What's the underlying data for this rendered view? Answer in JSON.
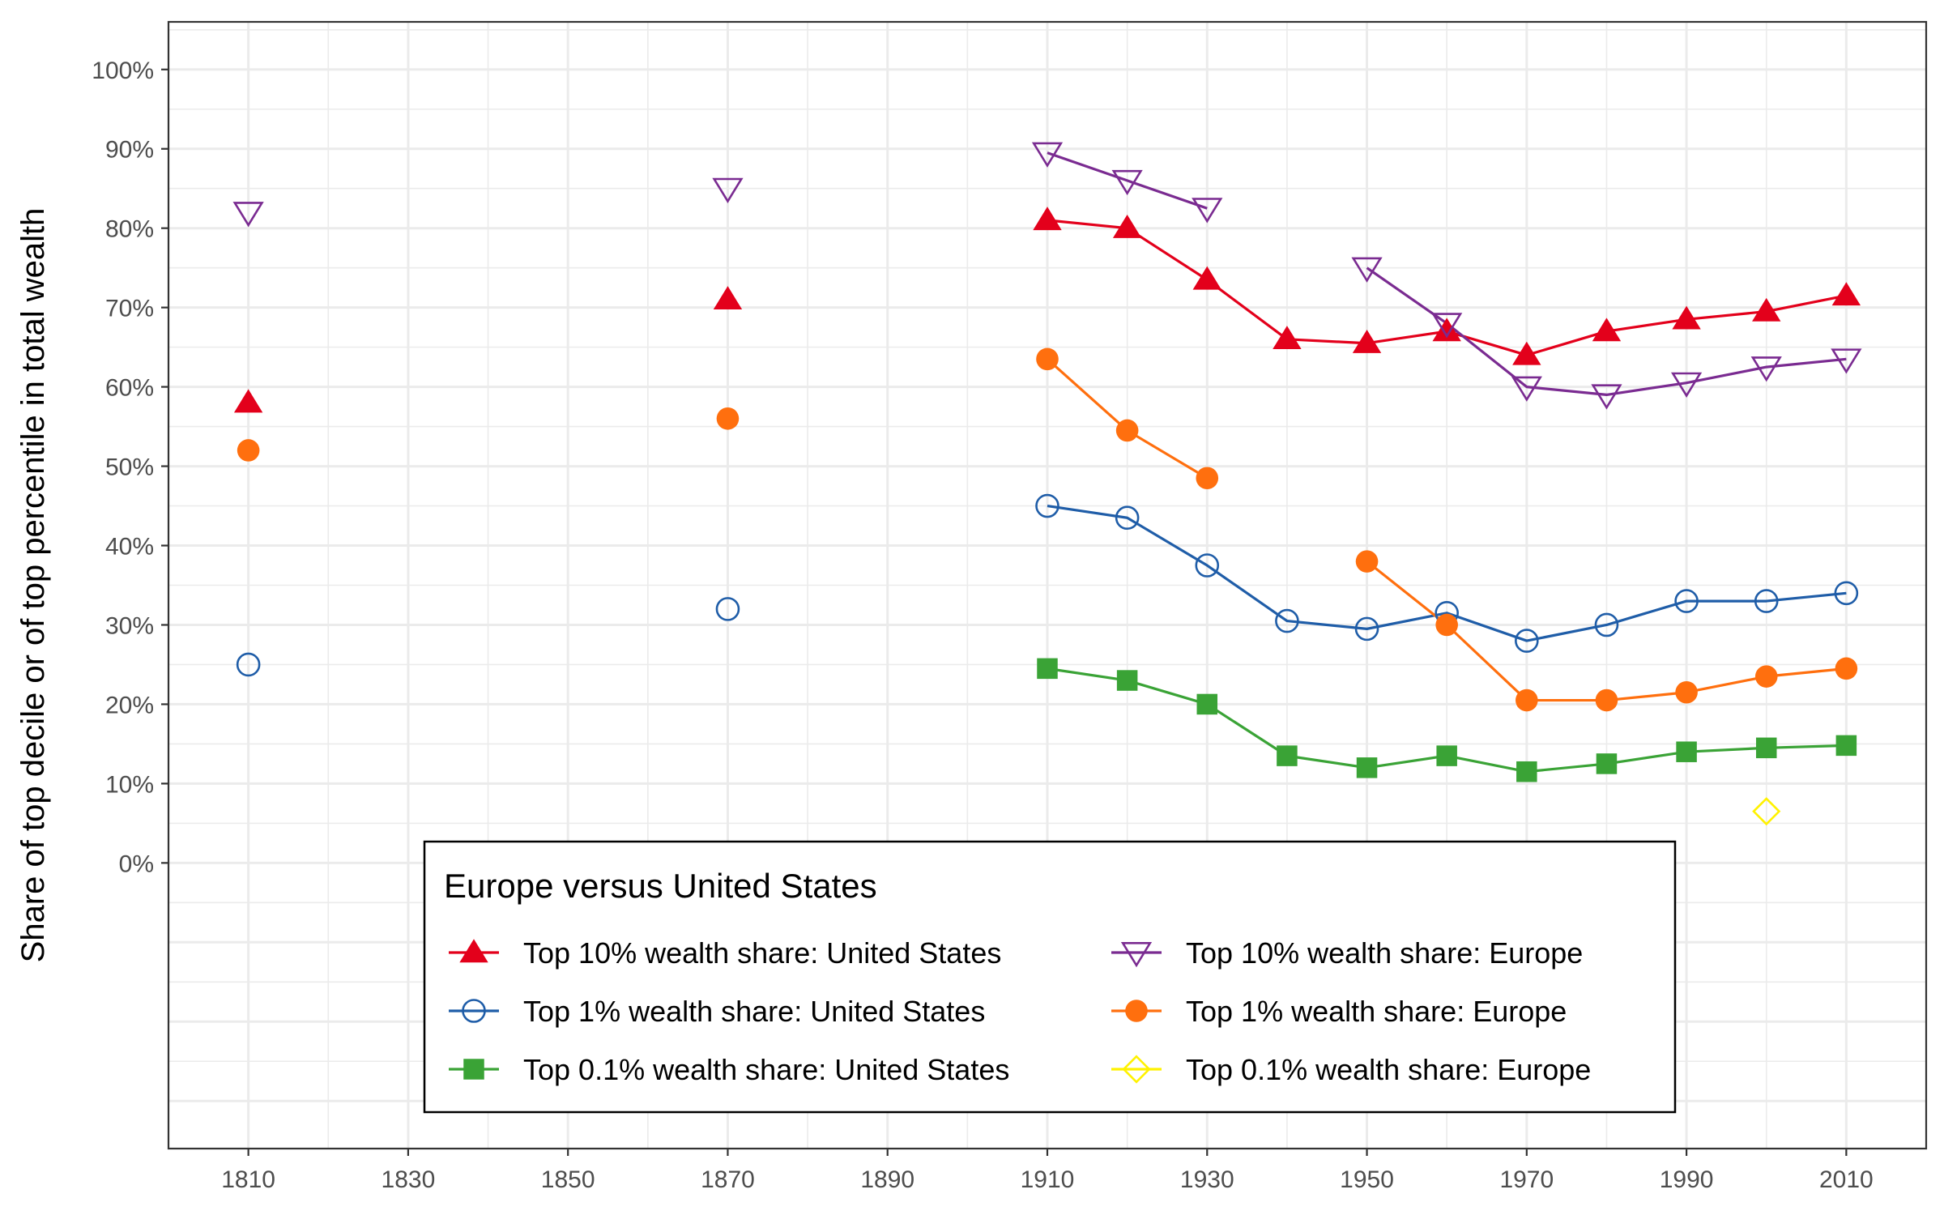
{
  "chart_data": {
    "type": "line",
    "title": "",
    "xlabel": "",
    "ylabel": "Share of top decile or of top percentile in total wealth",
    "xlim": [
      1800,
      2020
    ],
    "ylim": [
      -0.36,
      1.06
    ],
    "x_ticks": [
      1810,
      1830,
      1850,
      1870,
      1890,
      1910,
      1930,
      1950,
      1970,
      1990,
      2010
    ],
    "x_tick_labels": [
      "1810",
      "1830",
      "1850",
      "1870",
      "1890",
      "1910",
      "1930",
      "1950",
      "1970",
      "1990",
      "2010"
    ],
    "y_ticks": [
      0,
      0.1,
      0.2,
      0.3,
      0.4,
      0.5,
      0.6,
      0.7,
      0.8,
      0.9,
      1.0
    ],
    "y_tick_labels": [
      "0%",
      "10%",
      "20%",
      "30%",
      "40%",
      "50%",
      "60%",
      "70%",
      "80%",
      "90%",
      "100%"
    ],
    "grid": true,
    "legend": {
      "title": "Europe versus United States",
      "position": "bottom-center"
    },
    "series": [
      {
        "name": "Top 10% wealth share: United States",
        "color": "#E3001B",
        "marker": "triangle-filled",
        "points": [
          [
            1810,
            0.58
          ],
          [
            1870,
            0.71
          ],
          [
            1910,
            0.81
          ],
          [
            1920,
            0.8
          ],
          [
            1930,
            0.735
          ],
          [
            1940,
            0.66
          ],
          [
            1950,
            0.655
          ],
          [
            1960,
            0.67
          ],
          [
            1970,
            0.64
          ],
          [
            1980,
            0.67
          ],
          [
            1990,
            0.685
          ],
          [
            2000,
            0.695
          ],
          [
            2010,
            0.715
          ]
        ],
        "segments": [
          [
            1910,
            1920,
            1930,
            1940,
            1950,
            1960,
            1970,
            1980,
            1990,
            2000,
            2010
          ]
        ]
      },
      {
        "name": "Top 1% wealth share: United States",
        "color": "#1F5DA8",
        "marker": "circle-open",
        "points": [
          [
            1810,
            0.25
          ],
          [
            1870,
            0.32
          ],
          [
            1910,
            0.45
          ],
          [
            1920,
            0.435
          ],
          [
            1930,
            0.375
          ],
          [
            1940,
            0.305
          ],
          [
            1950,
            0.295
          ],
          [
            1960,
            0.315
          ],
          [
            1970,
            0.28
          ],
          [
            1980,
            0.3
          ],
          [
            1990,
            0.33
          ],
          [
            2000,
            0.33
          ],
          [
            2010,
            0.34
          ]
        ],
        "segments": [
          [
            1910,
            1920,
            1930,
            1940,
            1950,
            1960,
            1970,
            1980,
            1990,
            2000,
            2010
          ]
        ]
      },
      {
        "name": "Top 0.1% wealth share: United States",
        "color": "#3AA336",
        "marker": "square-filled",
        "points": [
          [
            1910,
            0.245
          ],
          [
            1920,
            0.23
          ],
          [
            1930,
            0.2
          ],
          [
            1940,
            0.135
          ],
          [
            1950,
            0.12
          ],
          [
            1960,
            0.135
          ],
          [
            1970,
            0.115
          ],
          [
            1980,
            0.125
          ],
          [
            1990,
            0.14
          ],
          [
            2000,
            0.145
          ],
          [
            2010,
            0.148
          ]
        ],
        "segments": [
          [
            1910,
            1920,
            1930,
            1940,
            1950,
            1960,
            1970,
            1980,
            1990,
            2000,
            2010
          ]
        ]
      },
      {
        "name": "Top 10% wealth share: Europe",
        "color": "#7A2B91",
        "marker": "triangle-down-open",
        "points": [
          [
            1810,
            0.82
          ],
          [
            1870,
            0.85
          ],
          [
            1910,
            0.895
          ],
          [
            1920,
            0.86
          ],
          [
            1930,
            0.825
          ],
          [
            1950,
            0.75
          ],
          [
            1960,
            0.68
          ],
          [
            1970,
            0.6
          ],
          [
            1980,
            0.59
          ],
          [
            1990,
            0.605
          ],
          [
            2000,
            0.625
          ],
          [
            2010,
            0.635
          ]
        ],
        "segments": [
          [
            1910,
            1920,
            1930
          ],
          [
            1950,
            1960,
            1970,
            1980,
            1990,
            2000,
            2010
          ]
        ]
      },
      {
        "name": "Top 1% wealth share: Europe",
        "color": "#FF6F0E",
        "marker": "circle-filled",
        "points": [
          [
            1810,
            0.52
          ],
          [
            1870,
            0.56
          ],
          [
            1910,
            0.635
          ],
          [
            1920,
            0.545
          ],
          [
            1930,
            0.485
          ],
          [
            1950,
            0.38
          ],
          [
            1960,
            0.3
          ],
          [
            1970,
            0.205
          ],
          [
            1980,
            0.205
          ],
          [
            1990,
            0.215
          ],
          [
            2000,
            0.235
          ],
          [
            2010,
            0.245
          ]
        ],
        "segments": [
          [
            1910,
            1920,
            1930
          ],
          [
            1950,
            1960,
            1970,
            1980,
            1990,
            2000,
            2010
          ]
        ]
      },
      {
        "name": "Top 0.1% wealth share: Europe",
        "color": "#FFF200",
        "marker": "diamond-open",
        "points": [
          [
            2000,
            0.065
          ]
        ],
        "segments": []
      }
    ]
  }
}
